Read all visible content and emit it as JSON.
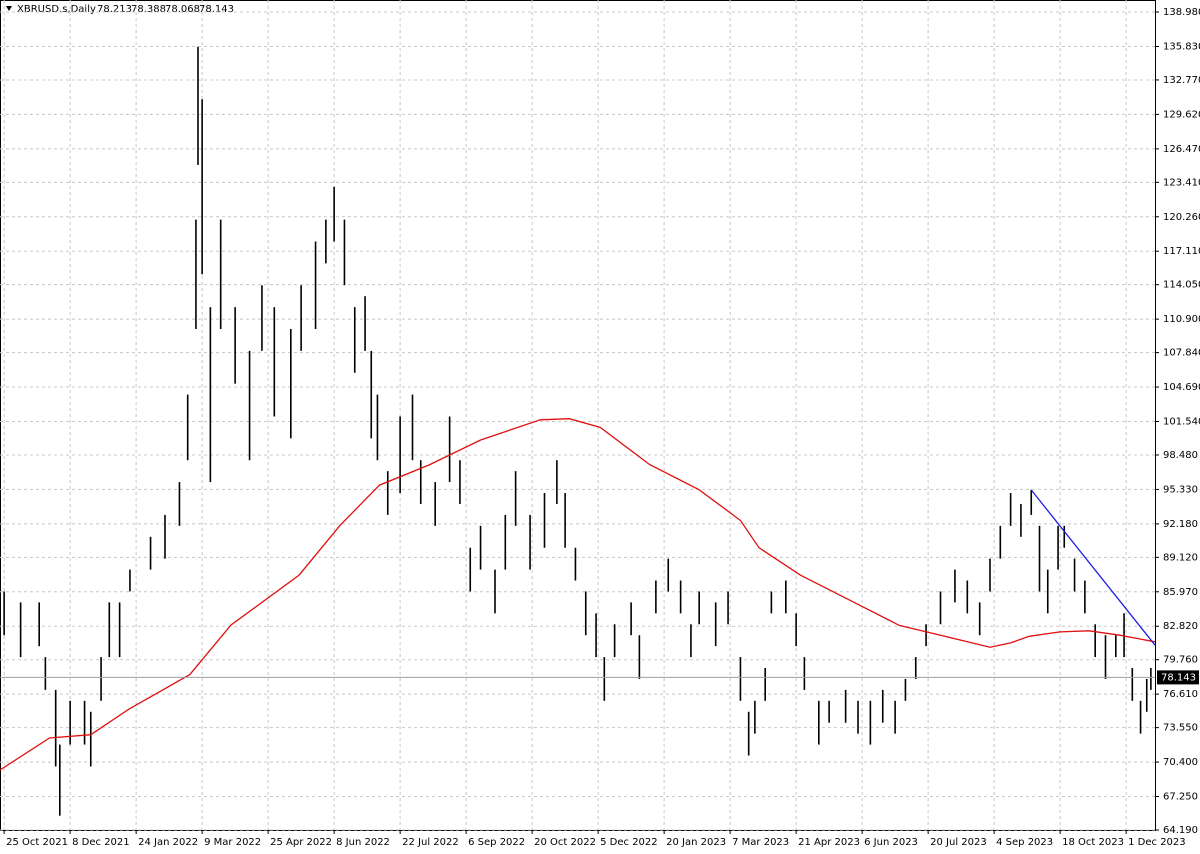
{
  "chart_data": {
    "type": "ohlc",
    "title": "XBRUSD.s,Daily",
    "quote": [
      78.213,
      78.388,
      78.068,
      78.143
    ],
    "color": "#000000",
    "grid": true,
    "x": [
      0,
      8,
      17,
      20,
      25,
      27,
      32,
      39,
      42,
      47,
      51,
      56,
      61,
      71,
      78,
      85,
      89,
      93,
      94,
      96,
      100,
      105,
      112,
      119,
      125,
      131,
      139,
      144,
      151,
      156,
      160,
      165,
      170,
      175,
      178,
      181,
      186,
      192,
      198,
      202,
      209,
      216,
      221,
      226,
      231,
      238,
      243,
      248,
      255,
      262,
      268,
      272,
      277,
      282,
      287,
      291,
      296,
      304,
      308,
      316,
      322,
      328,
      333,
      337,
      345,
      351,
      357,
      361,
      364,
      369,
      372,
      379,
      384,
      388,
      395,
      400,
      408,
      414,
      420,
      426,
      432,
      437,
      442,
      447,
      454,
      461,
      467,
      473,
      478,
      483,
      488,
      493,
      498,
      502,
      506,
      511,
      514,
      519,
      524,
      529,
      534,
      539,
      543,
      547,
      551,
      554,
      556
    ],
    "high": [
      86,
      85,
      85,
      80,
      77,
      72,
      76,
      76,
      75,
      80,
      85,
      85,
      88,
      91,
      93,
      96,
      104,
      120,
      135.8,
      131,
      112,
      120,
      112,
      108,
      114,
      112,
      110,
      114,
      118,
      120,
      123,
      120,
      112,
      113,
      108,
      104,
      97,
      102,
      104,
      98,
      96,
      102,
      98,
      90,
      92,
      88,
      93,
      97,
      93,
      95,
      98,
      95,
      90,
      86,
      84,
      80,
      83,
      85,
      82,
      87,
      89,
      87,
      83,
      86,
      85,
      86,
      80,
      75,
      76,
      79,
      86,
      87,
      84,
      80,
      76,
      76,
      77,
      76,
      76,
      77,
      76,
      78,
      80,
      83,
      86,
      88,
      87,
      85,
      89,
      92,
      95,
      94,
      95.3,
      92,
      88,
      92,
      92,
      89,
      87,
      83,
      82,
      82,
      84,
      79,
      76,
      78,
      79
    ],
    "low": [
      82,
      80,
      81,
      77,
      70,
      65.5,
      72,
      72,
      70,
      76,
      80,
      80,
      86,
      88,
      89,
      92,
      98,
      110,
      125,
      115,
      96,
      110,
      105,
      98,
      108,
      102,
      100,
      108,
      110,
      116,
      118,
      114,
      106,
      108,
      100,
      98,
      93,
      95,
      98,
      94,
      92,
      96,
      94,
      86,
      88,
      84,
      88,
      92,
      88,
      90,
      94,
      90,
      87,
      82,
      80,
      76,
      80,
      82,
      78,
      84,
      86,
      84,
      80,
      83,
      81,
      83,
      76,
      71,
      73,
      76,
      84,
      84,
      81,
      77,
      72,
      74,
      74,
      73,
      72,
      74,
      73,
      76,
      78,
      81,
      83,
      85,
      84,
      82,
      86,
      89,
      92,
      91,
      93,
      86,
      84,
      88,
      90,
      86,
      84,
      80,
      78,
      80,
      80,
      76,
      73,
      75,
      77
    ],
    "moving_average": {
      "color": "#e01010",
      "x": [
        -2,
        22,
        42,
        61,
        90,
        110,
        143,
        163,
        182,
        206,
        231,
        260,
        274,
        289,
        313,
        337,
        357,
        366,
        386,
        410,
        434,
        454,
        478,
        488,
        497,
        512,
        526,
        541,
        558
      ],
      "values": [
        69.68,
        72.6,
        72.9,
        75.3,
        78.4,
        82.93,
        87.5,
        92.07,
        95.73,
        97.56,
        99.85,
        101.7,
        101.8,
        101.0,
        97.6,
        95.3,
        92.5,
        90.0,
        87.5,
        85.2,
        82.9,
        82.0,
        80.9,
        81.3,
        81.9,
        82.3,
        82.4,
        82.0,
        81.4
      ]
    },
    "trendline": {
      "color": "#1e1ee8",
      "x": [
        498,
        558
      ],
      "values": [
        95.28,
        81.1
      ]
    },
    "xlim": [
      -2,
      558
    ],
    "ylim": [
      64.19,
      140.08
    ],
    "xticks": [
      {
        "value": 0,
        "label": "25 Oct 2021"
      },
      {
        "value": 32,
        "label": "8 Dec 2021"
      },
      {
        "value": 64,
        "label": "24 Jan 2022"
      },
      {
        "value": 96,
        "label": "9 Mar 2022"
      },
      {
        "value": 128,
        "label": "25 Apr 2022"
      },
      {
        "value": 160,
        "label": "8 Jun 2022"
      },
      {
        "value": 192,
        "label": "22 Jul 2022"
      },
      {
        "value": 224,
        "label": "6 Sep 2022"
      },
      {
        "value": 256,
        "label": "20 Oct 2022"
      },
      {
        "value": 288,
        "label": "5 Dec 2022"
      },
      {
        "value": 320,
        "label": "20 Jan 2023"
      },
      {
        "value": 352,
        "label": "7 Mar 2023"
      },
      {
        "value": 384,
        "label": "21 Apr 2023"
      },
      {
        "value": 416,
        "label": "6 Jun 2023"
      },
      {
        "value": 448,
        "label": "20 Jul 2023"
      },
      {
        "value": 480,
        "label": "4 Sep 2023"
      },
      {
        "value": 512,
        "label": "18 Oct 2023"
      },
      {
        "value": 544,
        "label": "1 Dec 2023"
      }
    ],
    "yticks": [
      {
        "value": 138.98,
        "label": "138.980"
      },
      {
        "value": 135.83,
        "label": "135.830"
      },
      {
        "value": 132.77,
        "label": "132.770"
      },
      {
        "value": 129.62,
        "label": "129.620"
      },
      {
        "value": 126.47,
        "label": "126.470"
      },
      {
        "value": 123.41,
        "label": "123.410"
      },
      {
        "value": 120.26,
        "label": "120.260"
      },
      {
        "value": 117.11,
        "label": "117.110"
      },
      {
        "value": 114.05,
        "label": "114.050"
      },
      {
        "value": 110.9,
        "label": "110.900"
      },
      {
        "value": 107.84,
        "label": "107.840"
      },
      {
        "value": 104.69,
        "label": "104.690"
      },
      {
        "value": 101.54,
        "label": "101.540"
      },
      {
        "value": 98.48,
        "label": "98.480"
      },
      {
        "value": 95.33,
        "label": "95.330"
      },
      {
        "value": 92.18,
        "label": "92.180"
      },
      {
        "value": 89.12,
        "label": "89.120"
      },
      {
        "value": 85.97,
        "label": "85.970"
      },
      {
        "value": 82.82,
        "label": "82.820"
      },
      {
        "value": 79.76,
        "label": "79.760"
      },
      {
        "value": 76.61,
        "label": "76.610"
      },
      {
        "value": 73.55,
        "label": "73.550"
      },
      {
        "value": 70.4,
        "label": "70.400"
      },
      {
        "value": 67.25,
        "label": "67.250"
      },
      {
        "value": 64.19,
        "label": "64.190"
      }
    ]
  }
}
